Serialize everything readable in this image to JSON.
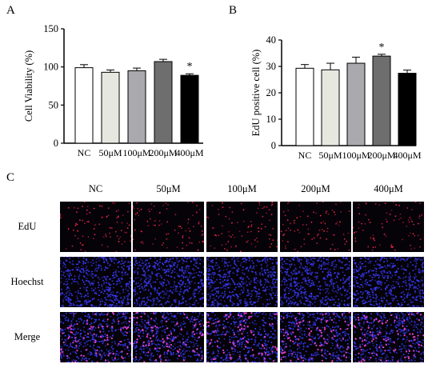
{
  "panels": {
    "a": "A",
    "b": "B",
    "c": "C"
  },
  "chart_data": [
    {
      "type": "bar",
      "title": "",
      "xlabel": "",
      "ylabel": "Cell Viability (%)",
      "ylim": [
        0,
        150
      ],
      "yticks": [
        0,
        50,
        100,
        150
      ],
      "categories": [
        "NC",
        "50μM",
        "100μM",
        "200μM",
        "400μM"
      ],
      "values": [
        99,
        93,
        95,
        107,
        89
      ],
      "errors": [
        4,
        3,
        3.5,
        3,
        2
      ],
      "bar_colors": [
        "#ffffff",
        "#e6e8e0",
        "#a9a9ae",
        "#6e6e6e",
        "#000000"
      ],
      "annotations": [
        {
          "category": "400μM",
          "text": "*"
        }
      ]
    },
    {
      "type": "bar",
      "title": "",
      "xlabel": "",
      "ylabel": "EdU positive cell (%)",
      "ylim": [
        0,
        40
      ],
      "yticks": [
        0,
        10,
        20,
        30,
        40
      ],
      "categories": [
        "NC",
        "50μM",
        "100μM",
        "200μM",
        "400μM"
      ],
      "values": [
        29.3,
        28.7,
        31.2,
        33.9,
        27.4
      ],
      "errors": [
        1.4,
        2.5,
        2.3,
        0.7,
        1.2
      ],
      "bar_colors": [
        "#ffffff",
        "#e6e8e0",
        "#a9a9ae",
        "#6e6e6e",
        "#000000"
      ],
      "annotations": [
        {
          "category": "200μM",
          "text": "*"
        }
      ]
    }
  ],
  "microscopy": {
    "columns": [
      "NC",
      "50μM",
      "100μM",
      "200μM",
      "400μM"
    ],
    "rows": [
      {
        "label": "EdU",
        "stain": "edu"
      },
      {
        "label": "Hoechst",
        "stain": "hoechst"
      },
      {
        "label": "Merge",
        "stain": "merge"
      }
    ],
    "colors": {
      "background": "#050208",
      "edu_dot": "#ff2a4a",
      "hoechst_dot": "#3a3cff",
      "merge_dot": "#e040c8"
    }
  }
}
